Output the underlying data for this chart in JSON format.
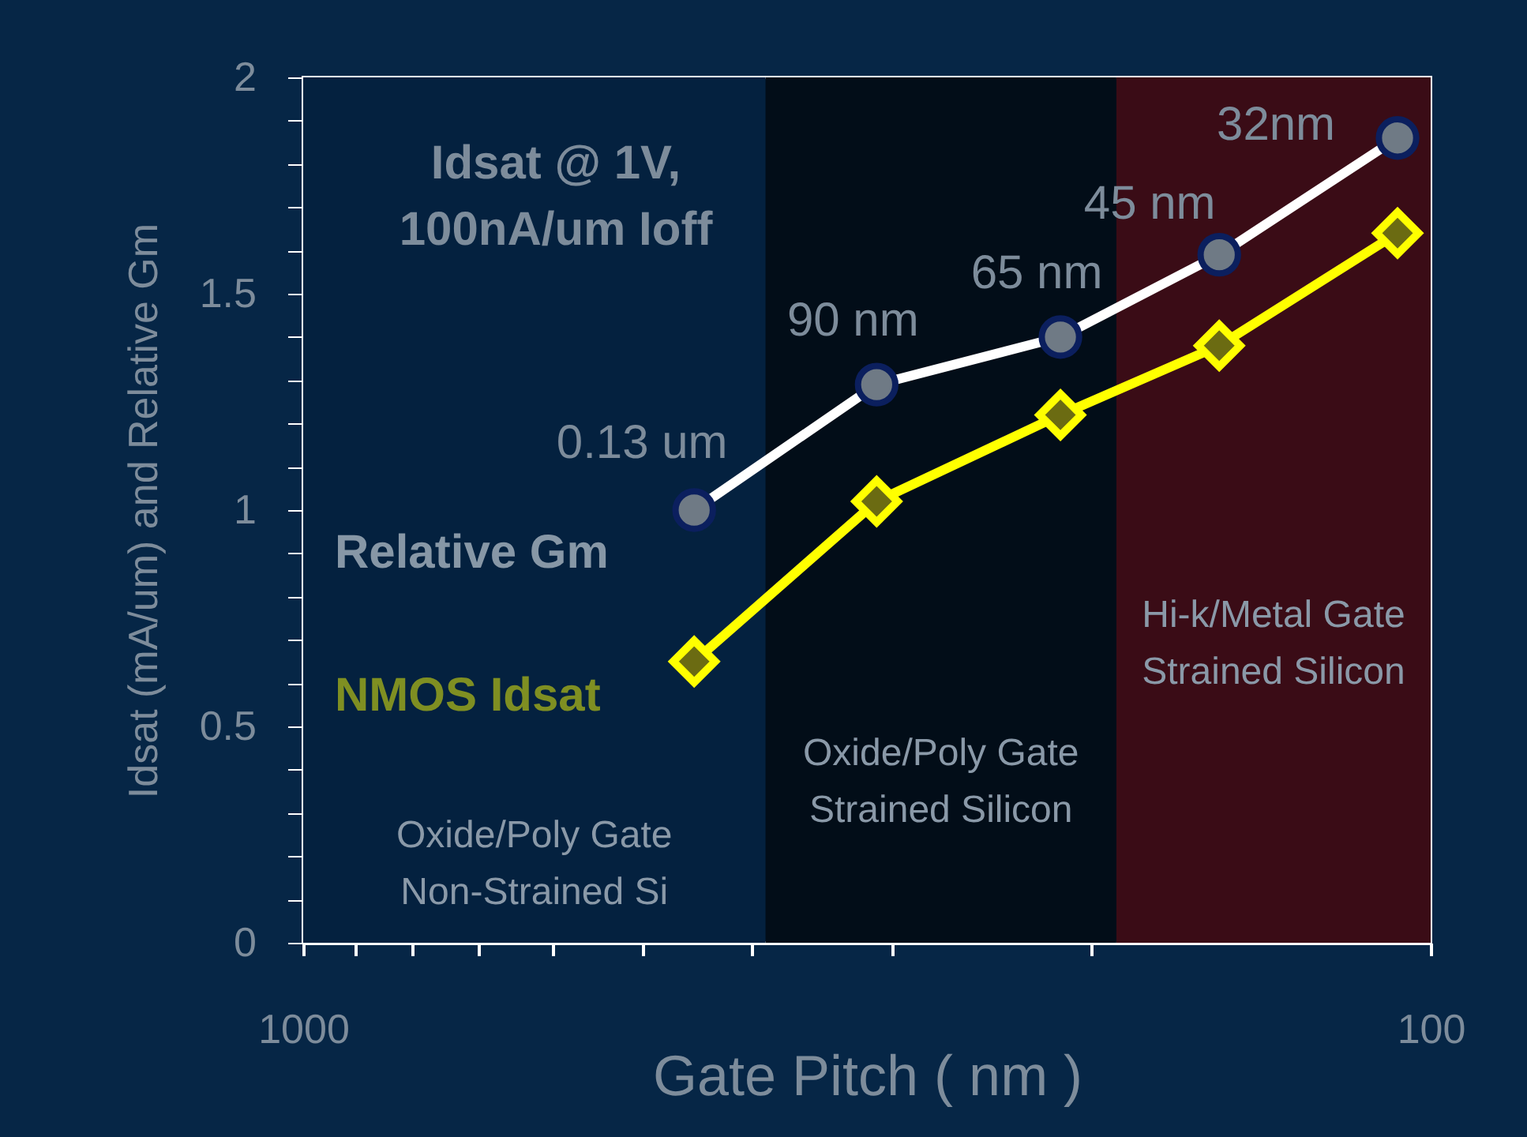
{
  "chart_data": {
    "type": "line",
    "xlabel": "Gate Pitch ( nm )",
    "ylabel": "Idsat (mA/um) and Relative Gm",
    "log": "x",
    "xlim": [
      1000,
      100
    ],
    "xticks": [
      1000,
      {
        "value": 900,
        "label": null
      },
      {
        "value": 800,
        "label": null
      },
      {
        "value": 700,
        "label": null
      },
      {
        "value": 600,
        "label": null
      },
      {
        "value": 500,
        "label": null
      },
      {
        "value": 400,
        "label": null
      },
      {
        "value": 300,
        "label": null
      },
      {
        "value": 200,
        "label": null
      },
      100
    ],
    "ylim": [
      0,
      2
    ],
    "yticks": [
      0,
      {
        "value": 0.1,
        "label": null
      },
      {
        "value": 0.2,
        "label": null
      },
      {
        "value": 0.3,
        "label": null
      },
      {
        "value": 0.4,
        "label": null
      },
      0.5,
      {
        "value": 0.6,
        "label": null
      },
      {
        "value": 0.7,
        "label": null
      },
      {
        "value": 0.8,
        "label": null
      },
      {
        "value": 0.9,
        "label": null
      },
      1,
      {
        "value": 1.1,
        "label": null
      },
      {
        "value": 1.2,
        "label": null
      },
      {
        "value": 1.3,
        "label": null
      },
      {
        "value": 1.4,
        "label": null
      },
      1.5,
      {
        "value": 1.6,
        "label": null
      },
      {
        "value": 1.7,
        "label": null
      },
      {
        "value": 1.8,
        "label": null
      },
      {
        "value": 1.9,
        "label": null
      },
      2
    ],
    "grid": false,
    "x": [
      450,
      310,
      213,
      154,
      107
    ],
    "series": [
      {
        "name": "Relative Gm",
        "color": "#ffffff",
        "marker": "circle",
        "values": [
          1.0,
          1.29,
          1.4,
          1.59,
          1.86
        ]
      },
      {
        "name": "NMOS Idsat",
        "color": "#ffff00",
        "marker": "diamond",
        "values": [
          0.65,
          1.02,
          1.22,
          1.38,
          1.64
        ]
      }
    ],
    "bands": [
      {
        "axis": "x",
        "from": 1000,
        "to": 389,
        "label": "Oxide/Poly Gate\nNon-Strained Si",
        "color": "#04213f"
      },
      {
        "axis": "x",
        "from": 389,
        "to": 190,
        "label": "Oxide/Poly Gate\nStrained Silicon",
        "color": "#020d18"
      },
      {
        "axis": "x",
        "from": 190,
        "to": 100,
        "label": "Hi-k/Metal Gate\nStrained Silicon",
        "color": "#3a0c16"
      }
    ],
    "annotations": [
      "Idsat @ 1V,\n100nA/um Ioff",
      {
        "text": "0.13 um",
        "x": 450,
        "y": 1.0
      },
      {
        "text": "90 nm",
        "x": 310,
        "y": 1.29
      },
      {
        "text": "65 nm",
        "x": 213,
        "y": 1.4
      },
      {
        "text": "45 nm",
        "x": 154,
        "y": 1.59
      },
      {
        "text": "32nm",
        "x": 107,
        "y": 1.86
      }
    ]
  }
}
